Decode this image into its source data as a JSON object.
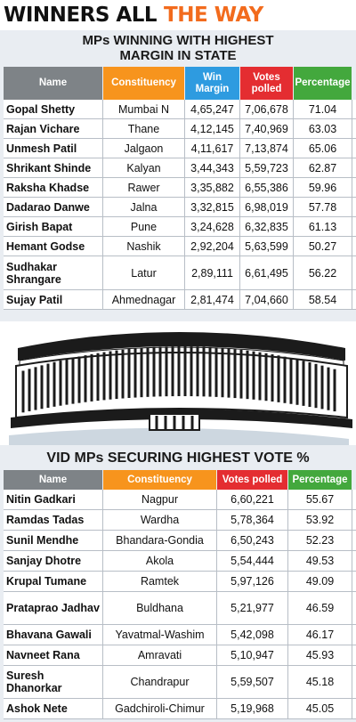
{
  "headline": {
    "part1": "WINNERS ALL",
    "part2": "THE WAY"
  },
  "table1": {
    "title_line1": "MPs WINNING WITH HIGHEST",
    "title_line2": "MARGIN IN STATE",
    "headers": {
      "name": "Name",
      "constituency": "Constituency",
      "win_margin": "Win Margin",
      "votes_polled": "Votes polled",
      "percentage": "Percentage"
    },
    "rows": [
      {
        "name": "Gopal Shetty",
        "constituency": "Mumbai N",
        "win_margin": "4,65,247",
        "votes_polled": "7,06,678",
        "percentage": "71.04"
      },
      {
        "name": "Rajan Vichare",
        "constituency": "Thane",
        "win_margin": "4,12,145",
        "votes_polled": "7,40,969",
        "percentage": "63.03"
      },
      {
        "name": "Unmesh Patil",
        "constituency": "Jalgaon",
        "win_margin": "4,11,617",
        "votes_polled": "7,13,874",
        "percentage": "65.06"
      },
      {
        "name": "Shrikant Shinde",
        "constituency": "Kalyan",
        "win_margin": "3,44,343",
        "votes_polled": "5,59,723",
        "percentage": "62.87"
      },
      {
        "name": "Raksha Khadse",
        "constituency": "Rawer",
        "win_margin": "3,35,882",
        "votes_polled": "6,55,386",
        "percentage": "59.96"
      },
      {
        "name": "Dadarao Danwe",
        "constituency": "Jalna",
        "win_margin": "3,32,815",
        "votes_polled": "6,98,019",
        "percentage": "57.78"
      },
      {
        "name": "Girish Bapat",
        "constituency": "Pune",
        "win_margin": "3,24,628",
        "votes_polled": "6,32,835",
        "percentage": "61.13"
      },
      {
        "name": "Hemant Godse",
        "constituency": "Nashik",
        "win_margin": "2,92,204",
        "votes_polled": "5,63,599",
        "percentage": "50.27"
      },
      {
        "name": "Sudhakar Shrangare",
        "constituency": "Latur",
        "win_margin": "2,89,111",
        "votes_polled": "6,61,495",
        "percentage": "56.22"
      },
      {
        "name": "Sujay Patil",
        "constituency": "Ahmednagar",
        "win_margin": "2,81,474",
        "votes_polled": "7,04,660",
        "percentage": "58.54"
      }
    ]
  },
  "table2": {
    "title": "VID MPs SECURING HIGHEST VOTE %",
    "headers": {
      "name": "Name",
      "constituency": "Constituency",
      "votes_polled": "Votes polled",
      "percentage": "Percentage"
    },
    "rows": [
      {
        "name": "Nitin Gadkari",
        "constituency": "Nagpur",
        "votes_polled": "6,60,221",
        "percentage": "55.67"
      },
      {
        "name": "Ramdas Tadas",
        "constituency": "Wardha",
        "votes_polled": "5,78,364",
        "percentage": "53.92"
      },
      {
        "name": "Sunil Mendhe",
        "constituency": "Bhandara-Gondia",
        "votes_polled": "6,50,243",
        "percentage": "52.23"
      },
      {
        "name": "Sanjay Dhotre",
        "constituency": "Akola",
        "votes_polled": "5,54,444",
        "percentage": "49.53"
      },
      {
        "name": "Krupal Tumane",
        "constituency": "Ramtek",
        "votes_polled": "5,97,126",
        "percentage": "49.09"
      },
      {
        "name": "Prataprao Jadhav",
        "constituency": "Buldhana",
        "votes_polled": "5,21,977",
        "percentage": "46.59"
      },
      {
        "name": "Bhavana Gawali",
        "constituency": "Yavatmal-Washim",
        "votes_polled": "5,42,098",
        "percentage": "46.17"
      },
      {
        "name": "Navneet Rana",
        "constituency": "Amravati",
        "votes_polled": "5,10,947",
        "percentage": "45.93"
      },
      {
        "name": "Suresh Dhanorkar",
        "constituency": "Chandrapur",
        "votes_polled": "5,59,507",
        "percentage": "45.18"
      },
      {
        "name": "Ashok Nete",
        "constituency": "Gadchiroli-Chimur",
        "votes_polled": "5,19,968",
        "percentage": "45.05"
      }
    ]
  },
  "illustration": {
    "icon": "parliament-building-icon"
  },
  "colors": {
    "header_grey": "#7e8387",
    "header_orange": "#f7941d",
    "header_blue": "#2e9be0",
    "header_red": "#e42d31",
    "header_green": "#43a83d",
    "headline_orange": "#f26b1d",
    "panel_bg": "#e9edf2"
  }
}
